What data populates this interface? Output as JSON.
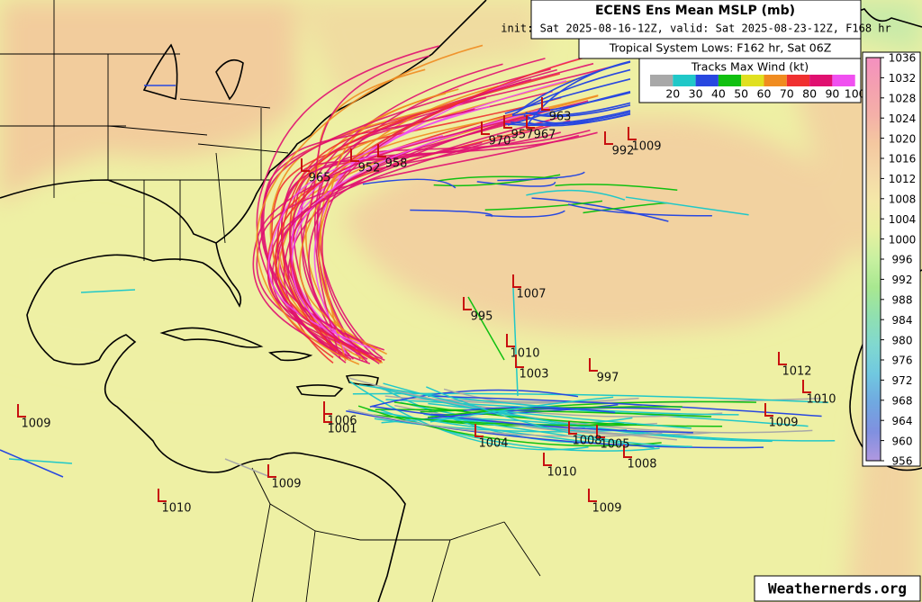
{
  "header": {
    "title": "ECENS Ens Mean MSLP (mb)",
    "subtitle": "init: Sat 2025-08-16-12Z, valid: Sat 2025-08-23-12Z, F168 hr",
    "lows_caption": "Tropical System Lows: F162 hr, Sat 06Z"
  },
  "wind_legend": {
    "title": "Tracks Max Wind (kt)",
    "colors": [
      "#a8a8a8",
      "#20c8c8",
      "#2848e0",
      "#10c010",
      "#e0e020",
      "#f08c20",
      "#f03030",
      "#e01070",
      "#f050f0"
    ],
    "ticks": [
      20,
      30,
      40,
      50,
      60,
      70,
      80,
      90,
      100
    ]
  },
  "pressure_scale": {
    "ticks": [
      956,
      960,
      964,
      968,
      972,
      976,
      980,
      984,
      988,
      992,
      996,
      1000,
      1004,
      1008,
      1012,
      1016,
      1020,
      1024,
      1028,
      1032,
      1036
    ],
    "colors": [
      "#b098e0",
      "#8090e0",
      "#70a8e0",
      "#70c8e0",
      "#80d8d0",
      "#90e0b0",
      "#a8e890",
      "#c8f0a0",
      "#e8f0a0",
      "#f4e8a8",
      "#f4d8a8",
      "#f4c8a0",
      "#f4b0a8",
      "#f4a0b0",
      "#f490c0"
    ]
  },
  "lows": [
    992,
    1009,
    1007,
    995,
    1010,
    1003,
    997,
    1012,
    1010,
    1009,
    1009,
    1006,
    1001,
    1004,
    1008,
    1005,
    1008,
    1010,
    1009,
    1010,
    1009,
    963,
    957,
    967,
    970,
    958,
    952,
    965
  ],
  "footer": {
    "credit": "Weathernerds.org"
  }
}
